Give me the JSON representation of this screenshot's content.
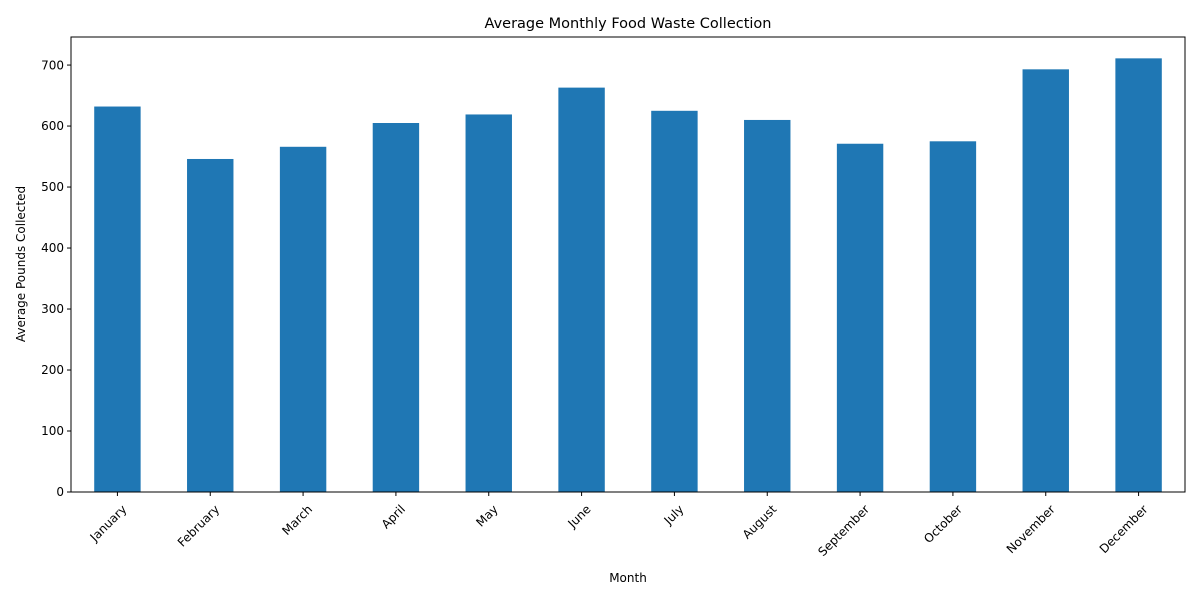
{
  "chart_data": {
    "type": "bar",
    "title": "Average Monthly Food Waste Collection",
    "xlabel": "Month",
    "ylabel": "Average Pounds Collected",
    "categories": [
      "January",
      "February",
      "March",
      "April",
      "May",
      "June",
      "July",
      "August",
      "September",
      "October",
      "November",
      "December"
    ],
    "values": [
      632,
      546,
      566,
      605,
      619,
      663,
      625,
      610,
      571,
      575,
      693,
      711
    ],
    "ylim": [
      0,
      746
    ],
    "yticks": [
      0,
      100,
      200,
      300,
      400,
      500,
      600,
      700
    ],
    "bar_color": "#1f77b4",
    "grid": false,
    "legend": "none"
  }
}
